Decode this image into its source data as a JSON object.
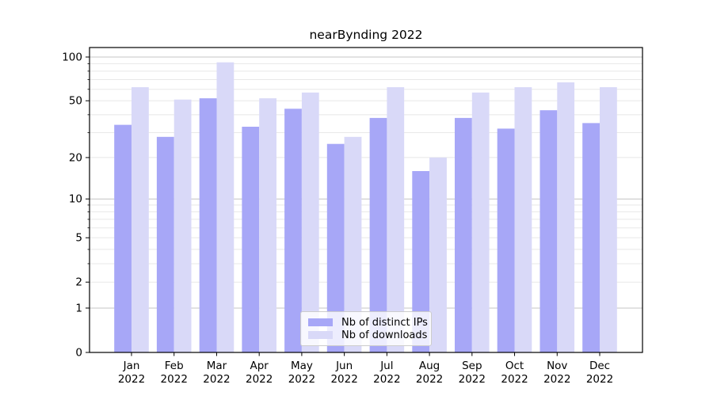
{
  "chart_data": {
    "type": "bar",
    "title": "nearBynding 2022",
    "categories": [
      "Jan",
      "Feb",
      "Mar",
      "Apr",
      "May",
      "Jun",
      "Jul",
      "Aug",
      "Sep",
      "Oct",
      "Nov",
      "Dec"
    ],
    "x_tick_year": "2022",
    "series": [
      {
        "name": "Nb of distinct IPs",
        "color": "#a7a7f7",
        "values": [
          34,
          28,
          52,
          33,
          44,
          25,
          38,
          16,
          38,
          32,
          43,
          35
        ]
      },
      {
        "name": "Nb of downloads",
        "color": "#d9d9f8",
        "values": [
          62,
          51,
          92,
          52,
          57,
          28,
          62,
          20,
          57,
          62,
          67,
          62
        ]
      }
    ],
    "y_axis": {
      "scale": "log1p",
      "labeled_ticks": [
        0,
        1,
        2,
        5,
        10,
        20,
        50,
        100
      ],
      "minor_ticks": [
        2,
        3,
        4,
        5,
        6,
        7,
        8,
        9,
        20,
        30,
        40,
        50,
        60,
        70,
        80,
        90
      ],
      "major_grid_ticks": [
        1,
        10,
        100
      ],
      "top_value": 117
    },
    "grid": "horizontal, major and minor",
    "legend_position": "lower center",
    "colors": {
      "major_grid": "#c4c4c4",
      "minor_grid": "#e8e8e8",
      "axis": "#000000",
      "text": "#000000",
      "background": "#ffffff"
    }
  }
}
